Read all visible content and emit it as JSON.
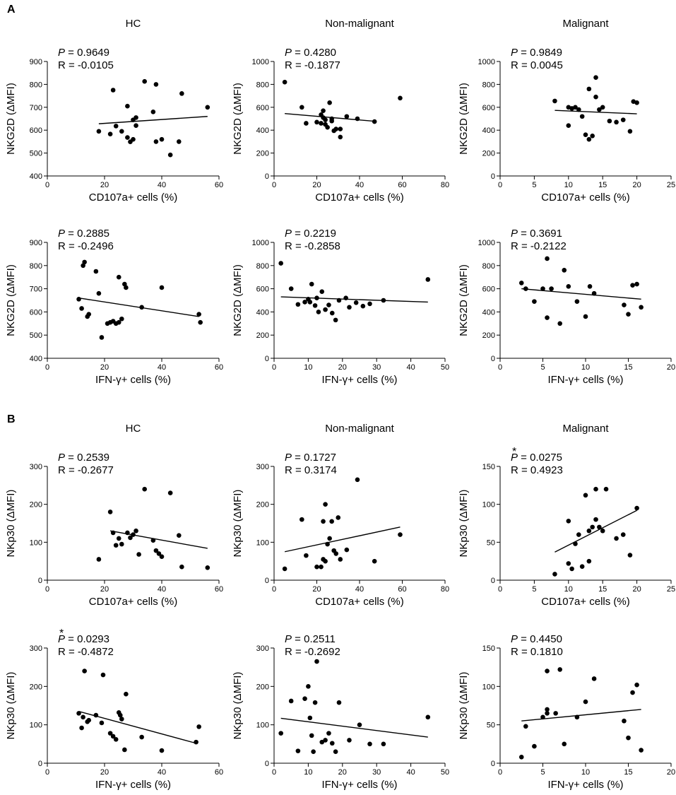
{
  "panel_labels": [
    "A",
    "B"
  ],
  "colors": {
    "ink": "#000000",
    "background": "#ffffff"
  },
  "chart_data": [
    {
      "id": "a1",
      "type": "scatter",
      "title": "HC",
      "xlabel": "CD107a+ cells (%)",
      "ylabel": "NKG2D (ΔMFI)",
      "xlim": [
        0,
        60
      ],
      "ylim": [
        400,
        900
      ],
      "xticks": [
        0,
        20,
        40,
        60
      ],
      "yticks": [
        400,
        500,
        600,
        700,
        800,
        900
      ],
      "p_text": " = 0.9649",
      "r_text": "R = -0.0105",
      "significant": false,
      "x": [
        18,
        22,
        23,
        24,
        26,
        28,
        28,
        29,
        30,
        30,
        31,
        31,
        34,
        37,
        38,
        38,
        40,
        43,
        46,
        47,
        56
      ],
      "y": [
        595,
        583,
        775,
        618,
        595,
        705,
        568,
        549,
        645,
        560,
        620,
        655,
        813,
        680,
        550,
        800,
        560,
        492,
        550,
        760,
        700
      ],
      "fit_line": {
        "x": [
          18,
          56
        ],
        "y": [
          628,
          660
        ]
      }
    },
    {
      "id": "a2",
      "type": "scatter",
      "title": "Non-malignant",
      "xlabel": "CD107a+ cells (%)",
      "ylabel": "NKG2D (ΔMFI)",
      "xlim": [
        0,
        80
      ],
      "ylim": [
        0,
        1000
      ],
      "xticks": [
        0,
        20,
        40,
        60,
        80
      ],
      "yticks": [
        0,
        200,
        400,
        600,
        800,
        1000
      ],
      "p_text": " = 0.4280",
      "r_text": "R = -0.1877",
      "significant": false,
      "x": [
        5,
        13,
        15,
        20,
        22,
        22,
        23,
        23,
        24,
        24,
        25,
        26,
        27,
        27,
        28,
        29,
        31,
        31,
        34,
        39,
        47,
        59
      ],
      "y": [
        820,
        600,
        460,
        470,
        535,
        460,
        570,
        510,
        450,
        490,
        425,
        640,
        500,
        480,
        395,
        410,
        340,
        410,
        520,
        500,
        475,
        680
      ],
      "fit_line": {
        "x": [
          5,
          47
        ],
        "y": [
          545,
          478
        ]
      }
    },
    {
      "id": "a3",
      "type": "scatter",
      "title": "Malignant",
      "xlabel": "CD107a+ cells (%)",
      "ylabel": "NKG2D (ΔMFI)",
      "xlim": [
        0,
        25
      ],
      "ylim": [
        0,
        1000
      ],
      "xticks": [
        0,
        5,
        10,
        15,
        20,
        25
      ],
      "yticks": [
        0,
        200,
        400,
        600,
        800,
        1000
      ],
      "p_text": " = 0.9849",
      "r_text": "R = 0.0045",
      "significant": false,
      "x": [
        8,
        10,
        10,
        10.5,
        11,
        11.5,
        12,
        12.5,
        13,
        13,
        13.5,
        14,
        14,
        14.5,
        15,
        16,
        17,
        18,
        19,
        19.5,
        20
      ],
      "y": [
        655,
        440,
        600,
        590,
        600,
        580,
        520,
        360,
        760,
        320,
        350,
        690,
        860,
        580,
        600,
        480,
        470,
        490,
        390,
        650,
        640
      ],
      "fit_line": {
        "x": [
          8,
          20
        ],
        "y": [
          573,
          543
        ]
      }
    },
    {
      "id": "a4",
      "type": "scatter",
      "title": "",
      "xlabel": "IFN-γ+ cells (%)",
      "ylabel": "NKG2D (ΔMFI)",
      "xlim": [
        0,
        60
      ],
      "ylim": [
        400,
        900
      ],
      "xticks": [
        0,
        20,
        40,
        60
      ],
      "yticks": [
        400,
        500,
        600,
        700,
        800,
        900
      ],
      "p_text": " = 0.2885",
      "r_text": "R = -0.2496",
      "significant": false,
      "x": [
        11,
        12,
        12.5,
        13,
        14,
        14.5,
        17,
        18,
        19,
        21,
        22,
        23,
        24,
        25,
        25,
        26,
        27,
        27.5,
        33,
        40,
        53,
        53.5
      ],
      "y": [
        655,
        615,
        800,
        815,
        580,
        590,
        775,
        680,
        490,
        550,
        555,
        560,
        550,
        750,
        555,
        570,
        720,
        705,
        620,
        705,
        590,
        555
      ],
      "fit_line": {
        "x": [
          11,
          53
        ],
        "y": [
          660,
          580
        ]
      }
    },
    {
      "id": "a5",
      "type": "scatter",
      "title": "",
      "xlabel": "IFN-γ+ cells (%)",
      "ylabel": "NKG2D (ΔMFI)",
      "xlim": [
        0,
        50
      ],
      "ylim": [
        0,
        1000
      ],
      "xticks": [
        0,
        10,
        20,
        30,
        40,
        50
      ],
      "yticks": [
        0,
        200,
        400,
        600,
        800,
        1000
      ],
      "p_text": " = 0.2219",
      "r_text": "R = -0.2858",
      "significant": false,
      "x": [
        2,
        5,
        7,
        9,
        10,
        10.5,
        11,
        12,
        12.5,
        13,
        14,
        15,
        16,
        17,
        18,
        19,
        21,
        22,
        24,
        26,
        28,
        32,
        45
      ],
      "y": [
        820,
        600,
        465,
        485,
        510,
        485,
        640,
        455,
        520,
        400,
        575,
        420,
        460,
        390,
        330,
        500,
        520,
        440,
        480,
        450,
        470,
        500,
        680
      ],
      "fit_line": {
        "x": [
          2,
          45
        ],
        "y": [
          530,
          485
        ]
      }
    },
    {
      "id": "a6",
      "type": "scatter",
      "title": "",
      "xlabel": "IFN-γ+ cells (%)",
      "ylabel": "NKG2D (ΔMFI)",
      "xlim": [
        0,
        20
      ],
      "ylim": [
        0,
        1000
      ],
      "xticks": [
        0,
        5,
        10,
        15,
        20
      ],
      "yticks": [
        0,
        200,
        400,
        600,
        800,
        1000
      ],
      "p_text": " = 0.3691",
      "r_text": "R = -0.2122",
      "significant": false,
      "x": [
        2.5,
        3,
        4,
        5,
        5.5,
        5.5,
        6,
        7,
        7.5,
        8,
        9,
        10,
        10.5,
        11,
        14.5,
        15,
        15.5,
        16,
        16.5
      ],
      "y": [
        650,
        600,
        490,
        600,
        860,
        350,
        600,
        300,
        760,
        620,
        490,
        360,
        620,
        560,
        460,
        380,
        630,
        640,
        440
      ],
      "fit_line": {
        "x": [
          2.5,
          16.5
        ],
        "y": [
          600,
          510
        ]
      }
    },
    {
      "id": "b1",
      "type": "scatter",
      "title": "HC",
      "xlabel": "CD107a+ cells (%)",
      "ylabel": "NKp30 (ΔMFI)",
      "xlim": [
        0,
        60
      ],
      "ylim": [
        0,
        300
      ],
      "xticks": [
        0,
        20,
        40,
        60
      ],
      "yticks": [
        0,
        100,
        200,
        300
      ],
      "p_text": " = 0.2539",
      "r_text": "R = -0.2677",
      "significant": false,
      "x": [
        18,
        22,
        23,
        24,
        25,
        26,
        28,
        29,
        30,
        31,
        32,
        34,
        37,
        38,
        39,
        40,
        43,
        46,
        47,
        56
      ],
      "y": [
        55,
        180,
        125,
        92,
        110,
        95,
        125,
        112,
        120,
        130,
        68,
        240,
        105,
        78,
        70,
        62,
        230,
        118,
        35,
        33
      ],
      "fit_line": {
        "x": [
          22,
          56
        ],
        "y": [
          130,
          84
        ]
      }
    },
    {
      "id": "b2",
      "type": "scatter",
      "title": "Non-malignant",
      "xlabel": "CD107a+ cells (%)",
      "ylabel": "NKp30 (ΔMFI)",
      "xlim": [
        0,
        80
      ],
      "ylim": [
        0,
        300
      ],
      "xticks": [
        0,
        20,
        40,
        60,
        80
      ],
      "yticks": [
        0,
        100,
        200,
        300
      ],
      "p_text": " = 0.1727",
      "r_text": "R = 0.3174",
      "significant": false,
      "x": [
        5,
        13,
        15,
        20,
        22,
        23,
        23,
        24,
        24,
        25,
        26,
        27,
        28,
        29,
        30,
        31,
        34,
        39,
        47,
        59
      ],
      "y": [
        30,
        160,
        65,
        35,
        35,
        155,
        55,
        200,
        50,
        95,
        110,
        155,
        78,
        70,
        165,
        55,
        80,
        265,
        50,
        120
      ],
      "fit_line": {
        "x": [
          5,
          59
        ],
        "y": [
          75,
          140
        ]
      }
    },
    {
      "id": "b3",
      "type": "scatter",
      "title": "Malignant",
      "xlabel": "CD107a+ cells (%)",
      "ylabel": "NKp30 (ΔMFI)",
      "xlim": [
        0,
        25
      ],
      "ylim": [
        0,
        150
      ],
      "xticks": [
        0,
        5,
        10,
        15,
        20,
        25
      ],
      "yticks": [
        0,
        50,
        100,
        150
      ],
      "p_text": " = 0.0275",
      "r_text": "R = 0.4923",
      "significant": true,
      "x": [
        8,
        10,
        10,
        10.5,
        11,
        11.5,
        12,
        12.5,
        13,
        13,
        13.5,
        14,
        14,
        14.5,
        15,
        15.5,
        17,
        18,
        19,
        20
      ],
      "y": [
        8,
        22,
        78,
        15,
        48,
        60,
        18,
        112,
        65,
        25,
        70,
        80,
        120,
        70,
        65,
        120,
        55,
        60,
        33,
        95
      ],
      "fit_line": {
        "x": [
          8,
          20
        ],
        "y": [
          37,
          92
        ]
      }
    },
    {
      "id": "b4",
      "type": "scatter",
      "title": "",
      "xlabel": "IFN-γ+ cells (%)",
      "ylabel": "NKp30 (ΔMFI)",
      "xlim": [
        0,
        60
      ],
      "ylim": [
        0,
        300
      ],
      "xticks": [
        0,
        20,
        40,
        60
      ],
      "yticks": [
        0,
        100,
        200,
        300
      ],
      "p_text": " = 0.0293",
      "r_text": "R = -0.4872",
      "significant": true,
      "x": [
        11,
        12,
        12.5,
        13,
        14,
        14.5,
        17,
        19,
        19.5,
        22,
        23,
        24,
        25,
        25.5,
        26,
        27,
        27.5,
        33,
        40,
        52,
        53
      ],
      "y": [
        130,
        92,
        120,
        240,
        108,
        112,
        125,
        105,
        230,
        78,
        70,
        62,
        132,
        125,
        115,
        35,
        180,
        68,
        33,
        55,
        95
      ],
      "fit_line": {
        "x": [
          11,
          52
        ],
        "y": [
          135,
          52
        ]
      }
    },
    {
      "id": "b5",
      "type": "scatter",
      "title": "",
      "xlabel": "IFN-γ+ cells (%)",
      "ylabel": "NKp30 (ΔMFI)",
      "xlim": [
        0,
        50
      ],
      "ylim": [
        0,
        300
      ],
      "xticks": [
        0,
        10,
        20,
        30,
        40,
        50
      ],
      "yticks": [
        0,
        100,
        200,
        300
      ],
      "p_text": " = 0.2511",
      "r_text": "R = -0.2692",
      "significant": false,
      "x": [
        2,
        5,
        7,
        9,
        10,
        10.5,
        11,
        11.5,
        12,
        12.5,
        14,
        15,
        16,
        17,
        18,
        19,
        22,
        25,
        28,
        32,
        45
      ],
      "y": [
        78,
        162,
        32,
        168,
        200,
        118,
        72,
        30,
        158,
        265,
        55,
        60,
        78,
        52,
        30,
        158,
        60,
        100,
        50,
        50,
        120
      ],
      "fit_line": {
        "x": [
          2,
          45
        ],
        "y": [
          117,
          68
        ]
      }
    },
    {
      "id": "b6",
      "type": "scatter",
      "title": "",
      "xlabel": "IFN-γ+ cells (%)",
      "ylabel": "NKp30 (ΔMFI)",
      "xlim": [
        0,
        20
      ],
      "ylim": [
        0,
        150
      ],
      "xticks": [
        0,
        5,
        10,
        15,
        20
      ],
      "yticks": [
        0,
        50,
        100,
        150
      ],
      "p_text": " = 0.4450",
      "r_text": "R = 0.1810",
      "significant": false,
      "x": [
        2.5,
        3,
        4,
        5,
        5.5,
        5.5,
        5.5,
        6.5,
        7,
        7.5,
        9,
        10,
        11,
        14.5,
        15,
        15.5,
        16,
        16.5
      ],
      "y": [
        8,
        48,
        22,
        60,
        65,
        70,
        120,
        65,
        122,
        25,
        60,
        80,
        110,
        55,
        33,
        92,
        102,
        17
      ],
      "fit_line": {
        "x": [
          2.5,
          16.5
        ],
        "y": [
          55,
          70
        ]
      }
    }
  ]
}
